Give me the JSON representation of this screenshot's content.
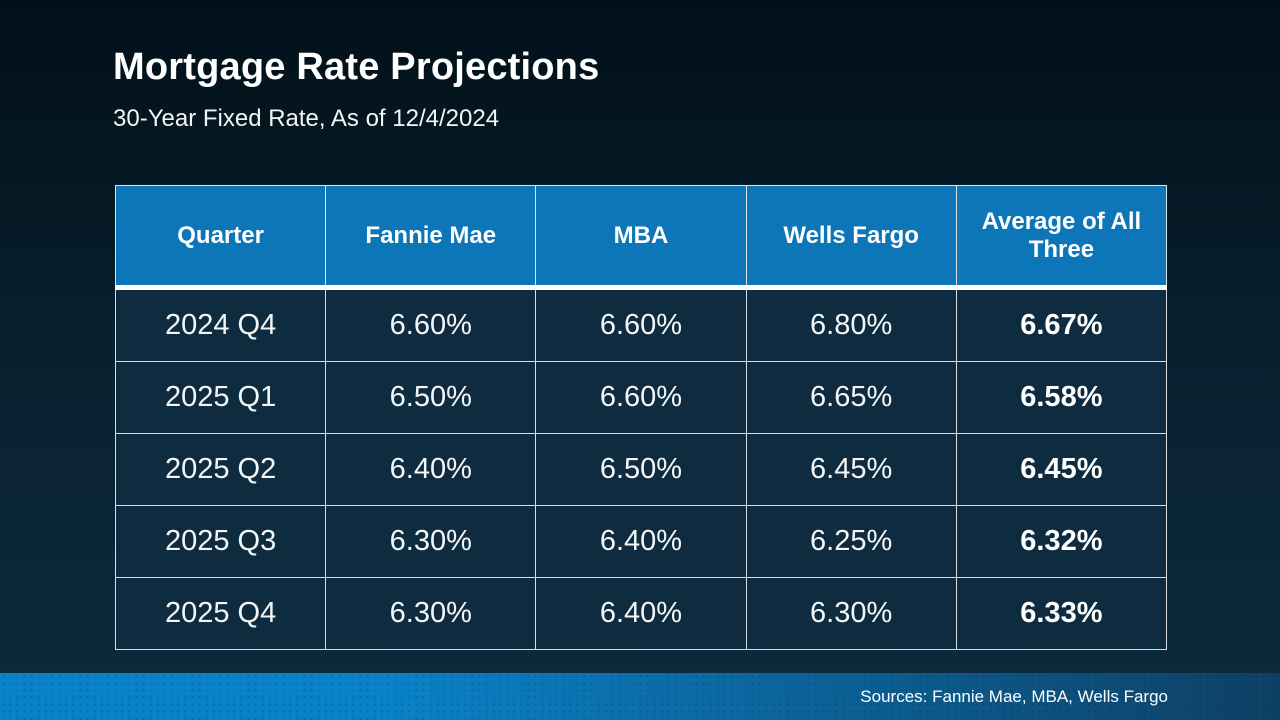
{
  "slide": {
    "title": "Mortgage Rate Projections",
    "subtitle": "30-Year Fixed Rate, As of 12/4/2024",
    "footer": {
      "sources": "Sources: Fannie Mae, MBA, Wells Fargo"
    }
  },
  "chart_data": {
    "type": "table",
    "title": "Mortgage Rate Projections",
    "subtitle": "30-Year Fixed Rate, As of 12/4/2024",
    "columns": [
      "Quarter",
      "Fannie Mae",
      "MBA",
      "Wells Fargo",
      "Average of All Three"
    ],
    "rows": [
      [
        "2024 Q4",
        "6.60%",
        "6.60%",
        "6.80%",
        "6.67%"
      ],
      [
        "2025 Q1",
        "6.50%",
        "6.60%",
        "6.65%",
        "6.58%"
      ],
      [
        "2025 Q2",
        "6.40%",
        "6.50%",
        "6.45%",
        "6.45%"
      ],
      [
        "2025 Q3",
        "6.30%",
        "6.40%",
        "6.25%",
        "6.32%"
      ],
      [
        "2025 Q4",
        "6.30%",
        "6.40%",
        "6.30%",
        "6.33%"
      ]
    ],
    "notes": "Last column values are bold; rates are 30-year fixed mortgage rate projections per quarter"
  },
  "colors": {
    "header_bg": "#0d76b8",
    "cell_bg": "#0e2b3f",
    "bg_top": "#021019",
    "bg_mid": "#092231",
    "bg_bottom": "#0c2b3d",
    "bar_left": "#0a82c8",
    "bar_right": "#0e4065",
    "text": "#ffffff"
  }
}
